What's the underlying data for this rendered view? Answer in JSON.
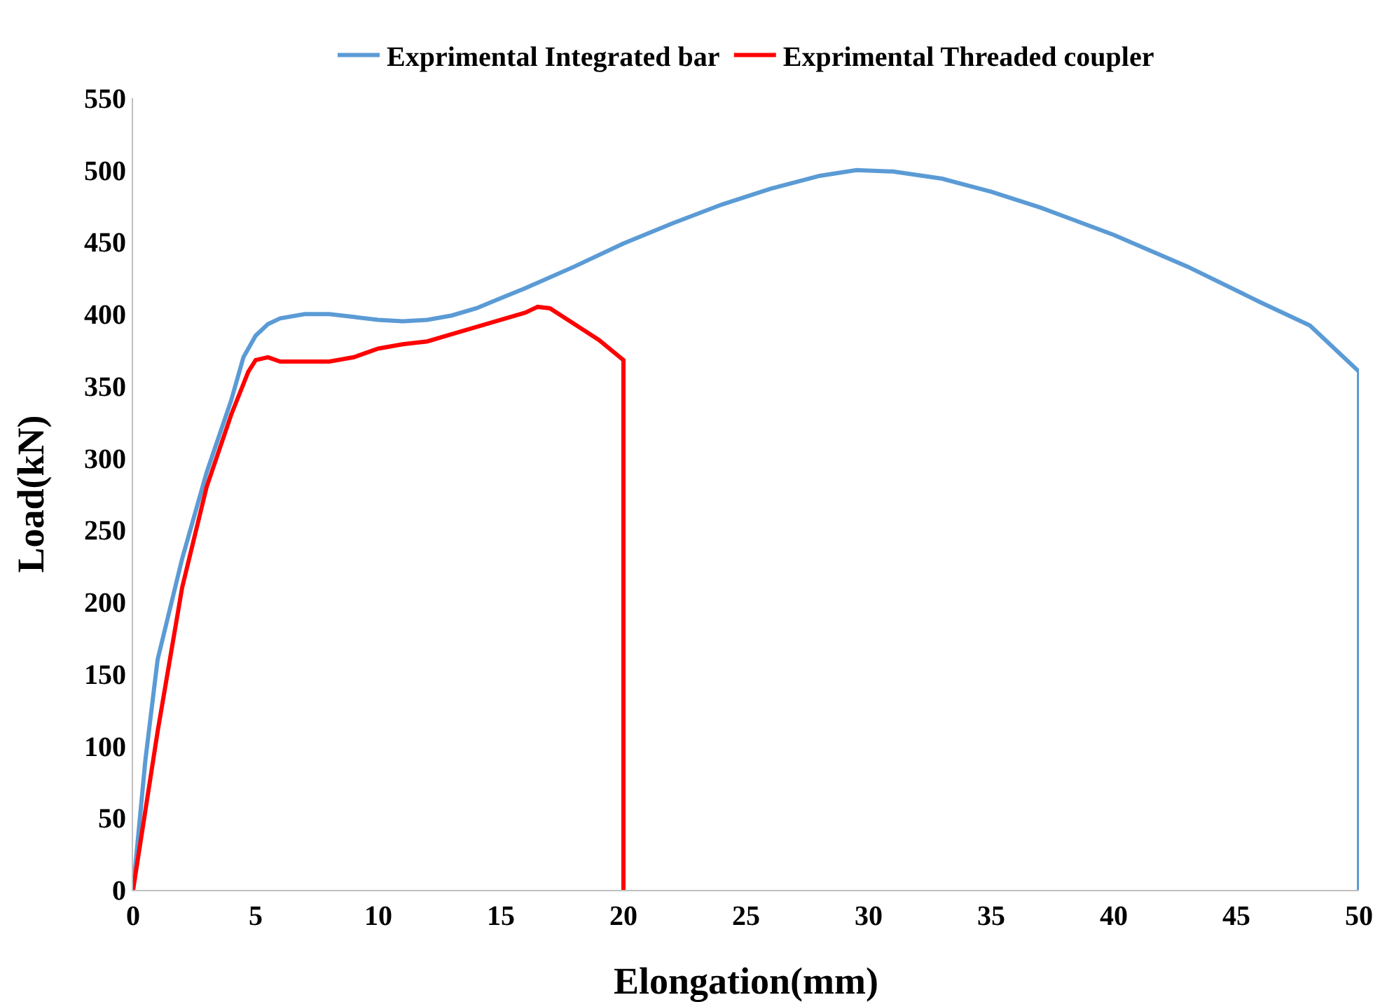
{
  "chart_data": {
    "type": "line",
    "xlabel": "Elongation(mm)",
    "ylabel": "Load(kN)",
    "xlim": [
      0,
      50
    ],
    "xticks": [
      0,
      5,
      10,
      15,
      20,
      25,
      30,
      35,
      40,
      45,
      50
    ],
    "ylim": [
      0,
      550
    ],
    "yticks": [
      0,
      50,
      100,
      150,
      200,
      250,
      300,
      350,
      400,
      450,
      500,
      550
    ],
    "grid": false,
    "legend": "top",
    "marker": "none",
    "line_style": "solid",
    "series": [
      {
        "name": "Exprimental Integrated bar",
        "color": "#5b9bd5",
        "x": [
          0,
          0.5,
          1,
          2,
          3,
          4,
          4.5,
          5,
          5.5,
          6,
          7,
          8,
          9,
          10,
          11,
          12,
          13,
          14,
          15,
          16,
          18,
          20,
          22,
          24,
          26,
          28,
          29.5,
          31,
          33,
          35,
          37,
          40,
          43,
          46,
          48,
          50,
          50
        ],
        "values": [
          0,
          90,
          160,
          230,
          290,
          340,
          370,
          385,
          393,
          397,
          400,
          400,
          398,
          396,
          395,
          396,
          399,
          404,
          411,
          418,
          433,
          449,
          463,
          476,
          487,
          496,
          500,
          499,
          494,
          485,
          474,
          455,
          433,
          408,
          392,
          360,
          0
        ]
      },
      {
        "name": "Exprimental Threaded coupler",
        "color": "#ff0000",
        "x": [
          0,
          1,
          2,
          3,
          4,
          4.7,
          5,
          5.5,
          6,
          7,
          8,
          9,
          10,
          11,
          12,
          13,
          14,
          15,
          16,
          16.5,
          17,
          18,
          19,
          20,
          20
        ],
        "values": [
          0,
          110,
          210,
          280,
          330,
          360,
          368,
          370,
          367,
          367,
          367,
          370,
          376,
          379,
          381,
          386,
          391,
          396,
          401,
          405,
          404,
          393,
          382,
          368,
          0
        ]
      }
    ]
  }
}
